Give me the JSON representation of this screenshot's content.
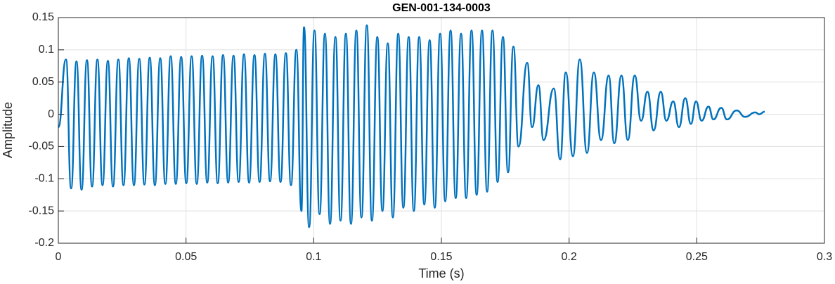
{
  "chart_data": {
    "type": "line",
    "title": "GEN-001-134-0003",
    "xlabel": "Time (s)",
    "ylabel": "Amplitude",
    "color": "#0072BD",
    "grid": true,
    "xlim": [
      0,
      0.3
    ],
    "ylim": [
      -0.2,
      0.15
    ],
    "xticks": [
      0,
      0.05,
      0.1,
      0.15,
      0.2,
      0.25,
      0.3
    ],
    "yticks": [
      -0.2,
      -0.15,
      -0.1,
      -0.05,
      0,
      0.05,
      0.1,
      0.15
    ],
    "x": [
      0.0,
      0.003,
      0.005,
      0.0071,
      0.0091,
      0.0112,
      0.0132,
      0.0153,
      0.0173,
      0.0194,
      0.0214,
      0.0235,
      0.0255,
      0.0276,
      0.0296,
      0.0317,
      0.0337,
      0.0358,
      0.0378,
      0.0399,
      0.0419,
      0.044,
      0.046,
      0.0481,
      0.0501,
      0.0522,
      0.0542,
      0.0563,
      0.0583,
      0.0604,
      0.0624,
      0.0645,
      0.0665,
      0.0686,
      0.0706,
      0.0727,
      0.0747,
      0.0768,
      0.0788,
      0.0809,
      0.0829,
      0.085,
      0.087,
      0.0891,
      0.0911,
      0.0932,
      0.0952,
      0.0962,
      0.0982,
      0.1003,
      0.1023,
      0.1044,
      0.1064,
      0.1085,
      0.1105,
      0.1126,
      0.1146,
      0.1167,
      0.1187,
      0.1208,
      0.1228,
      0.1249,
      0.1269,
      0.129,
      0.131,
      0.1331,
      0.1351,
      0.1372,
      0.1392,
      0.1413,
      0.1433,
      0.1454,
      0.1474,
      0.1495,
      0.1515,
      0.1536,
      0.1556,
      0.1577,
      0.1597,
      0.1618,
      0.1638,
      0.1659,
      0.1679,
      0.17,
      0.172,
      0.1741,
      0.1761,
      0.1782,
      0.1802,
      0.1836,
      0.1855,
      0.188,
      0.19,
      0.194,
      0.1965,
      0.1987,
      0.2015,
      0.2042,
      0.207,
      0.2097,
      0.2125,
      0.2155,
      0.2177,
      0.2205,
      0.223,
      0.2257,
      0.2282,
      0.2307,
      0.2331,
      0.2359,
      0.2381,
      0.2408,
      0.243,
      0.2455,
      0.2477,
      0.2497,
      0.2519,
      0.2546,
      0.2565,
      0.2596,
      0.2618,
      0.2656,
      0.2689,
      0.273,
      0.2744,
      0.2766
    ],
    "values": [
      -0.02,
      0.085,
      -0.115,
      0.082,
      -0.117,
      0.084,
      -0.112,
      0.085,
      -0.11,
      0.083,
      -0.112,
      0.085,
      -0.11,
      0.087,
      -0.11,
      0.086,
      -0.109,
      0.088,
      -0.11,
      0.087,
      -0.108,
      0.09,
      -0.108,
      0.089,
      -0.107,
      0.09,
      -0.108,
      0.091,
      -0.106,
      0.09,
      -0.107,
      0.092,
      -0.106,
      0.091,
      -0.105,
      0.093,
      -0.106,
      0.092,
      -0.105,
      0.094,
      -0.104,
      0.093,
      -0.105,
      0.095,
      -0.11,
      0.1,
      -0.15,
      0.135,
      -0.175,
      0.13,
      -0.155,
      0.125,
      -0.17,
      0.12,
      -0.165,
      0.125,
      -0.17,
      0.13,
      -0.16,
      0.138,
      -0.165,
      0.12,
      -0.15,
      0.11,
      -0.16,
      0.125,
      -0.145,
      0.12,
      -0.15,
      0.12,
      -0.14,
      0.115,
      -0.145,
      0.125,
      -0.135,
      0.13,
      -0.13,
      0.125,
      -0.13,
      0.13,
      -0.125,
      0.13,
      -0.12,
      0.13,
      -0.105,
      0.12,
      -0.09,
      0.105,
      -0.05,
      0.08,
      -0.02,
      0.045,
      -0.04,
      0.04,
      -0.07,
      0.065,
      -0.065,
      0.085,
      -0.06,
      0.065,
      -0.04,
      0.06,
      -0.045,
      0.06,
      -0.04,
      0.06,
      -0.01,
      0.035,
      -0.025,
      0.035,
      -0.01,
      0.02,
      -0.02,
      0.025,
      -0.015,
      0.02,
      -0.01,
      0.012,
      -0.008,
      0.01,
      -0.008,
      0.006,
      -0.004,
      0.003,
      0,
      0.004
    ]
  }
}
